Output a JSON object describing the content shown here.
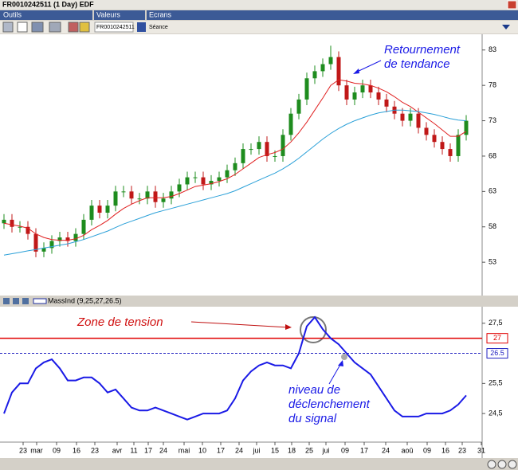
{
  "window": {
    "title": "FR0010242511 (1 Day) EDF",
    "menu": [
      "Outils",
      "Valeurs",
      "Ecrans"
    ],
    "symbol": "FR0010242511",
    "period": "Séance"
  },
  "chart_data": [
    {
      "type": "candlestick",
      "x": [
        0,
        1,
        2,
        3,
        4,
        5,
        6,
        7,
        8,
        9,
        10,
        11,
        12,
        13,
        14,
        15,
        16,
        17,
        18,
        19,
        20,
        21,
        22,
        23,
        24,
        25,
        26,
        27,
        28,
        29,
        30,
        31,
        32,
        33,
        34,
        35,
        36,
        37,
        38,
        39,
        40,
        41,
        42,
        43,
        44,
        45,
        46,
        47,
        48,
        49,
        50,
        51,
        52,
        53,
        54,
        55,
        56,
        57,
        58
      ],
      "open": [
        58.5,
        59,
        58,
        58,
        57,
        54.5,
        55,
        56,
        56.5,
        56,
        57,
        59,
        61,
        60,
        61,
        63,
        63,
        62,
        62,
        63,
        61.5,
        62,
        63,
        64,
        65,
        65,
        64,
        64.5,
        65,
        66,
        67,
        69,
        69,
        70,
        68,
        68,
        71,
        74,
        76,
        79,
        80,
        81,
        82,
        78,
        76,
        77,
        78,
        77,
        76,
        75,
        74,
        73,
        74,
        72,
        71,
        70,
        69,
        68,
        71
      ],
      "high": [
        59.8,
        59.8,
        58.8,
        58.8,
        57.8,
        55.8,
        56.8,
        57.3,
        57.3,
        57.8,
        59.8,
        61.8,
        61.8,
        61.8,
        63.8,
        63.8,
        63.8,
        62.8,
        63.8,
        63.8,
        62.8,
        63.8,
        64.8,
        65.8,
        65.8,
        65.8,
        65.3,
        65.8,
        66.8,
        67.8,
        69.8,
        69.8,
        70.8,
        70.8,
        68.8,
        71.8,
        74.8,
        76.8,
        79.8,
        80.8,
        81.8,
        83.6,
        82.8,
        78.8,
        77.8,
        78.8,
        78.8,
        77.8,
        76.8,
        75.8,
        74.8,
        74.8,
        74.8,
        72.8,
        71.8,
        70.8,
        69.8,
        71.8,
        73.8
      ],
      "low": [
        57.7,
        57.2,
        57.2,
        56.2,
        53.7,
        53.7,
        54.2,
        55.2,
        55.2,
        55.2,
        56.2,
        58.2,
        59.2,
        59.2,
        60.2,
        62.2,
        61.2,
        61.2,
        61.2,
        60.7,
        60.7,
        61.2,
        62.2,
        63.2,
        64.2,
        63.2,
        63.2,
        63.7,
        64.2,
        65.2,
        66.2,
        68.2,
        68.2,
        67.2,
        67.2,
        67.2,
        70.2,
        73.2,
        75.2,
        78.2,
        79.2,
        80.2,
        77.2,
        75.2,
        75.2,
        76.2,
        76.2,
        75.2,
        74.2,
        73.2,
        72.2,
        72.2,
        71.2,
        70.2,
        69.2,
        68.2,
        67.2,
        67.2,
        70.2
      ],
      "close": [
        59,
        58,
        58,
        57,
        54.5,
        55,
        56,
        56.5,
        56,
        57,
        59,
        61,
        60,
        61,
        63,
        63,
        62,
        62,
        63,
        61.5,
        62,
        63,
        64,
        65,
        65,
        64,
        64.5,
        65,
        66,
        67,
        69,
        69,
        70,
        68,
        68,
        71,
        74,
        76,
        79,
        80,
        81,
        82,
        78,
        76,
        77,
        78,
        77,
        76,
        75,
        74,
        73,
        74,
        72,
        71,
        70,
        69,
        68,
        71,
        73
      ],
      "up_color": "#1e8c1e",
      "down_color": "#c01818",
      "series": [
        {
          "color": "#e02020",
          "values": [
            58.5,
            58.3,
            58.1,
            57.8,
            57,
            56.5,
            56.2,
            56.1,
            56.1,
            56.3,
            56.8,
            57.6,
            58.2,
            58.9,
            59.8,
            60.6,
            61.2,
            61.7,
            62.1,
            62.1,
            62.1,
            62.3,
            62.7,
            63.2,
            63.7,
            63.9,
            64.1,
            64.4,
            64.8,
            65.4,
            66.2,
            67,
            67.8,
            68.2,
            68.5,
            69,
            70,
            71.3,
            72.8,
            74.5,
            76.2,
            78,
            78.8,
            78.6,
            78.3,
            78.2,
            78,
            77.6,
            77.1,
            76.4,
            75.6,
            75,
            74.2,
            73.4,
            72.6,
            71.7,
            70.8,
            70.8,
            71.5
          ]
        },
        {
          "color": "#2aa0d8",
          "values": [
            54,
            54.2,
            54.4,
            54.6,
            54.8,
            55,
            55.2,
            55.4,
            55.6,
            55.9,
            56.2,
            56.6,
            57,
            57.4,
            57.9,
            58.4,
            58.8,
            59.2,
            59.6,
            60,
            60.3,
            60.6,
            60.9,
            61.2,
            61.5,
            61.8,
            62.1,
            62.4,
            62.7,
            63.1,
            63.6,
            64.1,
            64.6,
            65.1,
            65.6,
            66.2,
            66.9,
            67.7,
            68.6,
            69.5,
            70.4,
            71.2,
            71.9,
            72.5,
            73,
            73.4,
            73.8,
            74.1,
            74.3,
            74.5,
            74.5,
            74.4,
            74.3,
            74.1,
            73.9,
            73.6,
            73.3,
            73.1,
            73
          ]
        }
      ],
      "xlim": [
        -0.5,
        60
      ],
      "ylim": [
        48.4,
        85
      ],
      "yticks": [
        53,
        58,
        63,
        68,
        73,
        78,
        83
      ],
      "annotations": [
        [
          "Retournement",
          "de tendance"
        ]
      ]
    },
    {
      "type": "line",
      "title": "MassInd (9,25,27,26.5)",
      "x": [
        0,
        1,
        2,
        3,
        4,
        5,
        6,
        7,
        8,
        9,
        10,
        11,
        12,
        13,
        14,
        15,
        16,
        17,
        18,
        19,
        20,
        21,
        22,
        23,
        24,
        25,
        26,
        27,
        28,
        29,
        30,
        31,
        32,
        33,
        34,
        35,
        36,
        37,
        38,
        39,
        40,
        41,
        42,
        43,
        44,
        45,
        46,
        47,
        48,
        49,
        50,
        51,
        52,
        53,
        54,
        55,
        56,
        57,
        58
      ],
      "series": [
        {
          "color": "#1a1ae6",
          "values": [
            24.5,
            25.2,
            25.5,
            25.5,
            26.0,
            26.2,
            26.3,
            26.0,
            25.6,
            25.6,
            25.7,
            25.7,
            25.5,
            25.2,
            25.3,
            25.0,
            24.7,
            24.6,
            24.6,
            24.7,
            24.6,
            24.5,
            24.4,
            24.3,
            24.4,
            24.5,
            24.5,
            24.5,
            24.6,
            25.0,
            25.6,
            25.9,
            26.1,
            26.2,
            26.1,
            26.1,
            26.0,
            26.5,
            27.4,
            27.7,
            27.3,
            27.0,
            26.8,
            26.5,
            26.2,
            26.0,
            25.8,
            25.4,
            25.0,
            24.6,
            24.4,
            24.4,
            24.4,
            24.5,
            24.5,
            24.5,
            24.6,
            24.8,
            25.1
          ]
        }
      ],
      "hlines": [
        {
          "value": 27,
          "color": "#e00000"
        },
        {
          "value": 26.5,
          "color": "#2020c0"
        }
      ],
      "xlim": [
        -0.5,
        60
      ],
      "ylim": [
        23.55,
        28.05
      ],
      "yticks": [
        {
          "value": 27.5,
          "label": "27,5"
        },
        {
          "value": 25.5,
          "label": "25,5"
        },
        {
          "value": 24.5,
          "label": "24,5"
        }
      ],
      "xticks": [
        {
          "value": 2.4,
          "label": "23"
        },
        {
          "value": 4.1,
          "label": "mar"
        },
        {
          "value": 6.6,
          "label": "09"
        },
        {
          "value": 9.1,
          "label": "16"
        },
        {
          "value": 11.4,
          "label": "23"
        },
        {
          "value": 14.2,
          "label": "avr"
        },
        {
          "value": 16.3,
          "label": "11"
        },
        {
          "value": 18.1,
          "label": "17"
        },
        {
          "value": 20,
          "label": "24"
        },
        {
          "value": 22.6,
          "label": "mai"
        },
        {
          "value": 24.9,
          "label": "10"
        },
        {
          "value": 27.2,
          "label": "17"
        },
        {
          "value": 29.5,
          "label": "24"
        },
        {
          "value": 31.7,
          "label": "jui"
        },
        {
          "value": 34,
          "label": "15"
        },
        {
          "value": 36.1,
          "label": "18"
        },
        {
          "value": 38.3,
          "label": "25"
        },
        {
          "value": 40.4,
          "label": "jui"
        },
        {
          "value": 42.8,
          "label": "09"
        },
        {
          "value": 45.2,
          "label": "17"
        },
        {
          "value": 47.9,
          "label": "24"
        },
        {
          "value": 50.6,
          "label": "aoû"
        },
        {
          "value": 53.1,
          "label": "09"
        },
        {
          "value": 55.4,
          "label": "16"
        },
        {
          "value": 57.5,
          "label": "23"
        },
        {
          "value": 59.9,
          "label": "31"
        }
      ],
      "annotations": [
        [
          "Zone de tension"
        ],
        [
          "niveau de",
          "déclenchement",
          "du signal"
        ]
      ]
    }
  ]
}
